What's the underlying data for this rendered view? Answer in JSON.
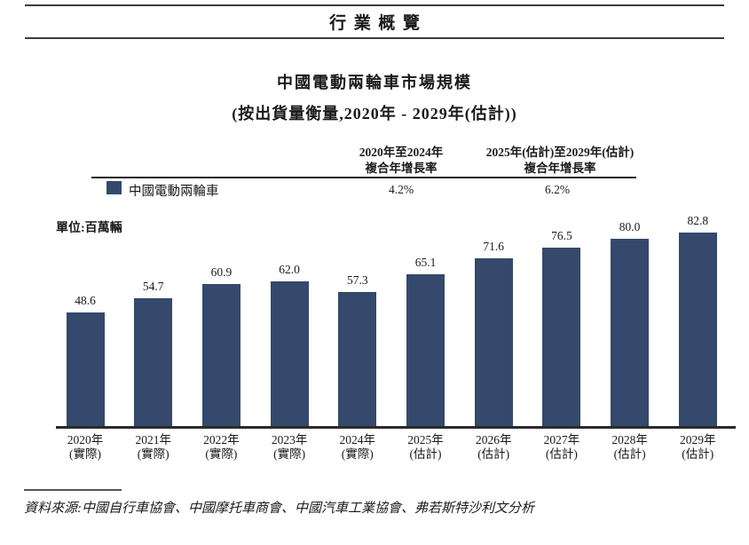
{
  "page": {
    "header_title": "行業概覽",
    "chart_title": "中國電動兩輪車市場規模",
    "chart_subtitle": "(按出貨量衡量,2020年 - 2029年(估計))",
    "unit_label": "單位:百萬輛",
    "source_text": "資料來源:中國自行車協會、中國摩托車商會、中國汽車工業協會、弗若斯特沙利文分析"
  },
  "cagr_table": {
    "legend": {
      "label": "中國電動兩輪車",
      "swatch_color": "#34496B",
      "swatch_icon": "legend-square"
    },
    "columns": [
      {
        "header_line1": "2020年至2024年",
        "header_line2": "複合年增長率",
        "value": "4.2%"
      },
      {
        "header_line1": "2025年(估計)至2029年(估計)",
        "header_line2": "複合年增長率",
        "value": "6.2%"
      }
    ]
  },
  "chart_data": {
    "type": "bar",
    "title": "中國電動兩輪車市場規模",
    "subtitle": "(按出貨量衡量,2020年 - 2029年(估計))",
    "ylabel": "百萬輛",
    "xlabel": "",
    "ylim": [
      0,
      90
    ],
    "grid": false,
    "legend_position": "top-left-of-table",
    "series_name": "中國電動兩輪車",
    "categories": [
      {
        "year": "2020年",
        "note": "(實際)"
      },
      {
        "year": "2021年",
        "note": "(實際)"
      },
      {
        "year": "2022年",
        "note": "(實際)"
      },
      {
        "year": "2023年",
        "note": "(實際)"
      },
      {
        "year": "2024年",
        "note": "(實際)"
      },
      {
        "year": "2025年",
        "note": "(估計)"
      },
      {
        "year": "2026年",
        "note": "(估計)"
      },
      {
        "year": "2027年",
        "note": "(估計)"
      },
      {
        "year": "2028年",
        "note": "(估計)"
      },
      {
        "year": "2029年",
        "note": "(估計)"
      }
    ],
    "values": [
      48.6,
      54.7,
      60.9,
      62.0,
      57.3,
      65.1,
      71.6,
      76.5,
      80.0,
      82.8
    ],
    "value_labels": [
      "48.6",
      "54.7",
      "60.9",
      "62.0",
      "57.3",
      "65.1",
      "71.6",
      "76.5",
      "80.0",
      "82.8"
    ],
    "bar_color": "#34496B",
    "cagr_2020_2024": "4.2%",
    "cagr_2025_2029_est": "6.2%"
  }
}
